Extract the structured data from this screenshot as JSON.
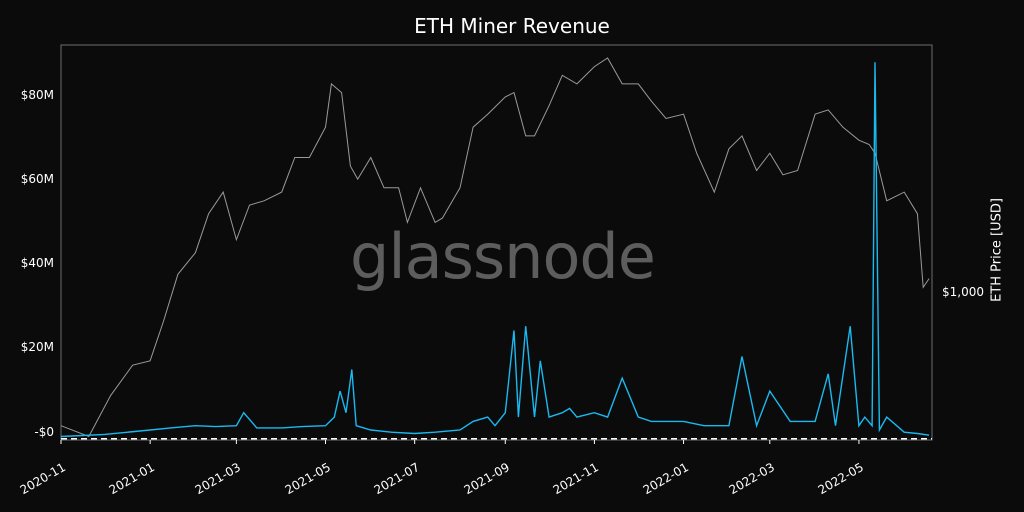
{
  "chart_data": {
    "type": "line",
    "title": "ETH Miner Revenue",
    "y_right_label": "ETH Price [USD]",
    "y_left_ticks": [
      "-$0",
      "$20M",
      "$40M",
      "$60M",
      "$80M"
    ],
    "y_left_tick_values": [
      0,
      20,
      40,
      60,
      80
    ],
    "y_left_unit": "USD millions",
    "ylim_left": [
      -0.3,
      91
    ],
    "y_right_ticks": [
      "$1,000"
    ],
    "y_right_tick_values": [
      1000
    ],
    "x_ticks": [
      "2020-11",
      "2021-01",
      "2021-03",
      "2021-05",
      "2021-07",
      "2021-09",
      "2021-11",
      "2022-01",
      "2022-03",
      "2022-05"
    ],
    "x_range": [
      "2020-11-01",
      "2022-06-20"
    ],
    "grid": false,
    "watermark": "glassnode",
    "colors": {
      "price": "#9a9a9a",
      "revenue": "#1ab9f0",
      "zero_line": "#ffffff",
      "background": "#0b0b0b"
    },
    "series": [
      {
        "axis": "right",
        "axis_note": "price on right axis, plotted against left scale in USD-millions-equivalent",
        "x": [
          "2020-11-01",
          "2020-11-20",
          "2020-12-05",
          "2020-12-20",
          "2021-01-01",
          "2021-01-10",
          "2021-01-20",
          "2021-02-01",
          "2021-02-10",
          "2021-02-20",
          "2021-03-01",
          "2021-03-10",
          "2021-03-20",
          "2021-04-01",
          "2021-04-10",
          "2021-04-20",
          "2021-05-01",
          "2021-05-05",
          "2021-05-12",
          "2021-05-18",
          "2021-05-23",
          "2021-06-01",
          "2021-06-10",
          "2021-06-20",
          "2021-06-26",
          "2021-07-05",
          "2021-07-15",
          "2021-07-20",
          "2021-08-01",
          "2021-08-10",
          "2021-08-20",
          "2021-09-01",
          "2021-09-07",
          "2021-09-15",
          "2021-09-21",
          "2021-10-01",
          "2021-10-10",
          "2021-10-20",
          "2021-11-01",
          "2021-11-10",
          "2021-11-20",
          "2021-12-01",
          "2021-12-10",
          "2021-12-20",
          "2022-01-01",
          "2022-01-10",
          "2022-01-22",
          "2022-02-01",
          "2022-02-10",
          "2022-02-20",
          "2022-03-01",
          "2022-03-10",
          "2022-03-20",
          "2022-04-01",
          "2022-04-10",
          "2022-04-20",
          "2022-05-01",
          "2022-05-08",
          "2022-05-12",
          "2022-05-20",
          "2022-06-01",
          "2022-06-10",
          "2022-06-14",
          "2022-06-18"
        ],
        "values": [
          3,
          0.5,
          10,
          17,
          18,
          27,
          38,
          43,
          52,
          57,
          46,
          54,
          55,
          57,
          65,
          65,
          72,
          82,
          80,
          63,
          60,
          65,
          58,
          58,
          50,
          58,
          50,
          51,
          58,
          72,
          75,
          79,
          80,
          70,
          70,
          77,
          84,
          82,
          86,
          88,
          82,
          82,
          78,
          74,
          75,
          66,
          57,
          67,
          70,
          62,
          66,
          61,
          62,
          75,
          76,
          72,
          69,
          68,
          66,
          55,
          57,
          52,
          35,
          37
        ]
      },
      {
        "axis": "left",
        "unit": "USD millions",
        "x": [
          "2020-11-01",
          "2020-12-01",
          "2021-01-01",
          "2021-01-15",
          "2021-02-01",
          "2021-02-15",
          "2021-03-01",
          "2021-03-06",
          "2021-03-15",
          "2021-04-01",
          "2021-04-15",
          "2021-05-01",
          "2021-05-07",
          "2021-05-11",
          "2021-05-15",
          "2021-05-19",
          "2021-05-22",
          "2021-06-01",
          "2021-06-15",
          "2021-07-01",
          "2021-07-15",
          "2021-08-01",
          "2021-08-10",
          "2021-08-20",
          "2021-08-25",
          "2021-09-01",
          "2021-09-07",
          "2021-09-10",
          "2021-09-15",
          "2021-09-21",
          "2021-09-25",
          "2021-10-01",
          "2021-10-10",
          "2021-10-15",
          "2021-10-20",
          "2021-11-01",
          "2021-11-10",
          "2021-11-20",
          "2021-12-01",
          "2021-12-10",
          "2021-12-20",
          "2022-01-01",
          "2022-01-15",
          "2022-02-01",
          "2022-02-10",
          "2022-02-20",
          "2022-03-01",
          "2022-03-15",
          "2022-04-01",
          "2022-04-10",
          "2022-04-15",
          "2022-04-25",
          "2022-05-01",
          "2022-05-05",
          "2022-05-10",
          "2022-05-12",
          "2022-05-15",
          "2022-05-20",
          "2022-06-01",
          "2022-06-10",
          "2022-06-18"
        ],
        "values": [
          0.5,
          1,
          2,
          2.5,
          3,
          2.8,
          3,
          6,
          2.5,
          2.5,
          2.8,
          3,
          5,
          11,
          6,
          16,
          3,
          2,
          1.5,
          1.2,
          1.5,
          2,
          4,
          5,
          3,
          6,
          25,
          5,
          26,
          5,
          18,
          5,
          6,
          7,
          5,
          6,
          5,
          14,
          5,
          4,
          4,
          4,
          3,
          3,
          19,
          3,
          11,
          4,
          4,
          15,
          3,
          26,
          3,
          5,
          3,
          87,
          2,
          5,
          1.5,
          1.2,
          0.8
        ]
      }
    ]
  }
}
